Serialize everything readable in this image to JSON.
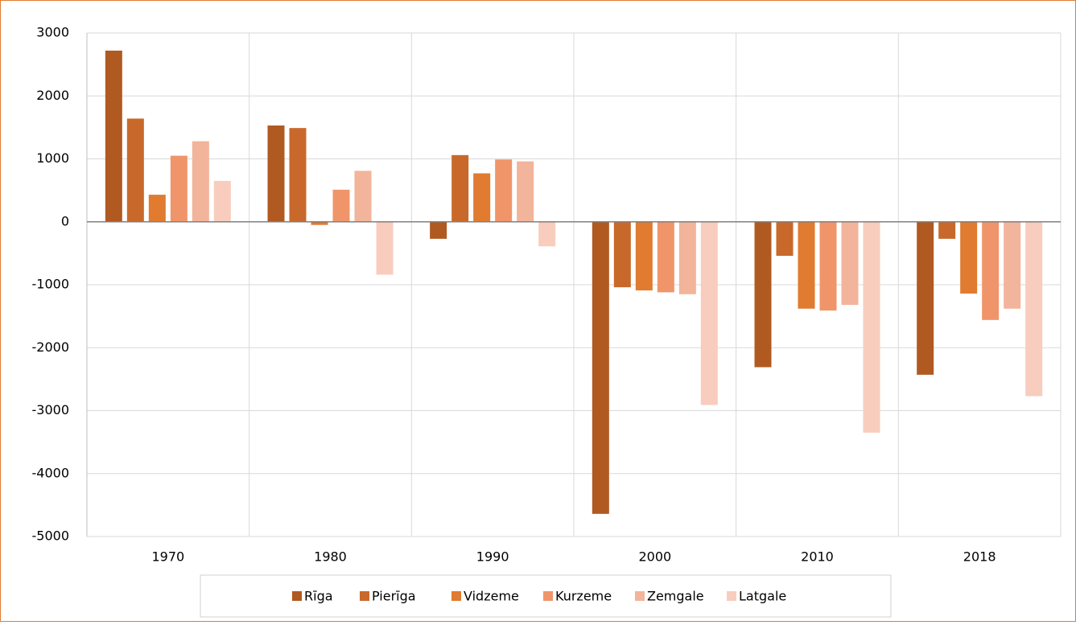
{
  "chart_data": {
    "type": "bar",
    "categories": [
      "1970",
      "1980",
      "1990",
      "2000",
      "2010",
      "2018"
    ],
    "series": [
      {
        "name": "Rīga",
        "color": "#b05a22",
        "values": [
          2720,
          1530,
          -270,
          -4640,
          -2310,
          -2430
        ]
      },
      {
        "name": "Pierīga",
        "color": "#c8692b",
        "values": [
          1640,
          1490,
          1060,
          -1040,
          -540,
          -270
        ]
      },
      {
        "name": "Vidzeme",
        "color": "#e07b30",
        "values": [
          430,
          -50,
          770,
          -1090,
          -1380,
          -1140
        ]
      },
      {
        "name": "Kurzeme",
        "color": "#f0956a",
        "values": [
          1050,
          510,
          990,
          -1120,
          -1410,
          -1560
        ]
      },
      {
        "name": "Zemgale",
        "color": "#f2b49a",
        "values": [
          1280,
          810,
          960,
          -1150,
          -1320,
          -1380
        ]
      },
      {
        "name": "Latgale",
        "color": "#f8cdbd",
        "values": [
          650,
          -840,
          -390,
          -2910,
          -3350,
          -2770
        ]
      }
    ],
    "ylim": [
      -5000,
      3000
    ],
    "yticks": [
      -5000,
      -4000,
      -3000,
      -2000,
      -1000,
      0,
      1000,
      2000,
      3000
    ],
    "grid": true,
    "legend": "bottom"
  }
}
